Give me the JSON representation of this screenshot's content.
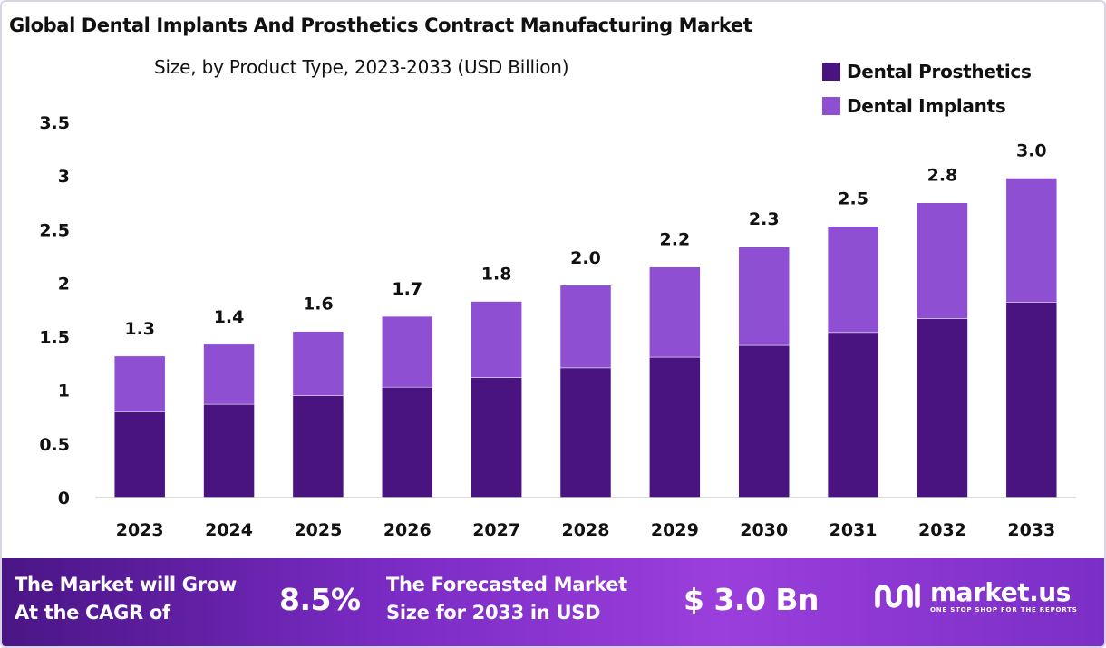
{
  "chart_data": {
    "type": "bar",
    "stacked": true,
    "title": "Global Dental Implants And Prosthetics Contract Manufacturing Market",
    "subtitle": "Size, by Product Type, 2023-2033 (USD Billion)",
    "categories": [
      "2023",
      "2024",
      "2025",
      "2026",
      "2027",
      "2028",
      "2029",
      "2030",
      "2031",
      "2032",
      "2033"
    ],
    "series": [
      {
        "name": "Dental Prosthetics",
        "color": "#4a1480",
        "values": [
          0.8,
          0.87,
          0.95,
          1.03,
          1.12,
          1.21,
          1.31,
          1.42,
          1.54,
          1.67,
          1.82
        ]
      },
      {
        "name": "Dental Implants",
        "color": "#8e4fd3",
        "values": [
          0.52,
          0.56,
          0.6,
          0.66,
          0.71,
          0.77,
          0.84,
          0.92,
          0.99,
          1.08,
          1.16
        ]
      }
    ],
    "total_labels": [
      "1.3",
      "1.4",
      "1.6",
      "1.7",
      "1.8",
      "2.0",
      "2.2",
      "2.3",
      "2.5",
      "2.8",
      "3.0"
    ],
    "y_ticks": [
      "0",
      "0.5",
      "1",
      "1.5",
      "2",
      "2.5",
      "3",
      "3.5"
    ],
    "ylim": [
      0,
      3.5
    ],
    "grid": false,
    "legend": "top-right"
  },
  "footer": {
    "cagr_line1": "The Market will Grow",
    "cagr_line2": "At the CAGR of",
    "cagr_value": "8.5%",
    "forecast_line1": "The Forecasted Market",
    "forecast_line2": "Size for 2033 in USD",
    "forecast_value": "$ 3.0 Bn",
    "brand_name": "market.us",
    "brand_tagline": "ONE STOP SHOP FOR THE REPORTS",
    "brand_icon": "market-us-logo-icon"
  }
}
